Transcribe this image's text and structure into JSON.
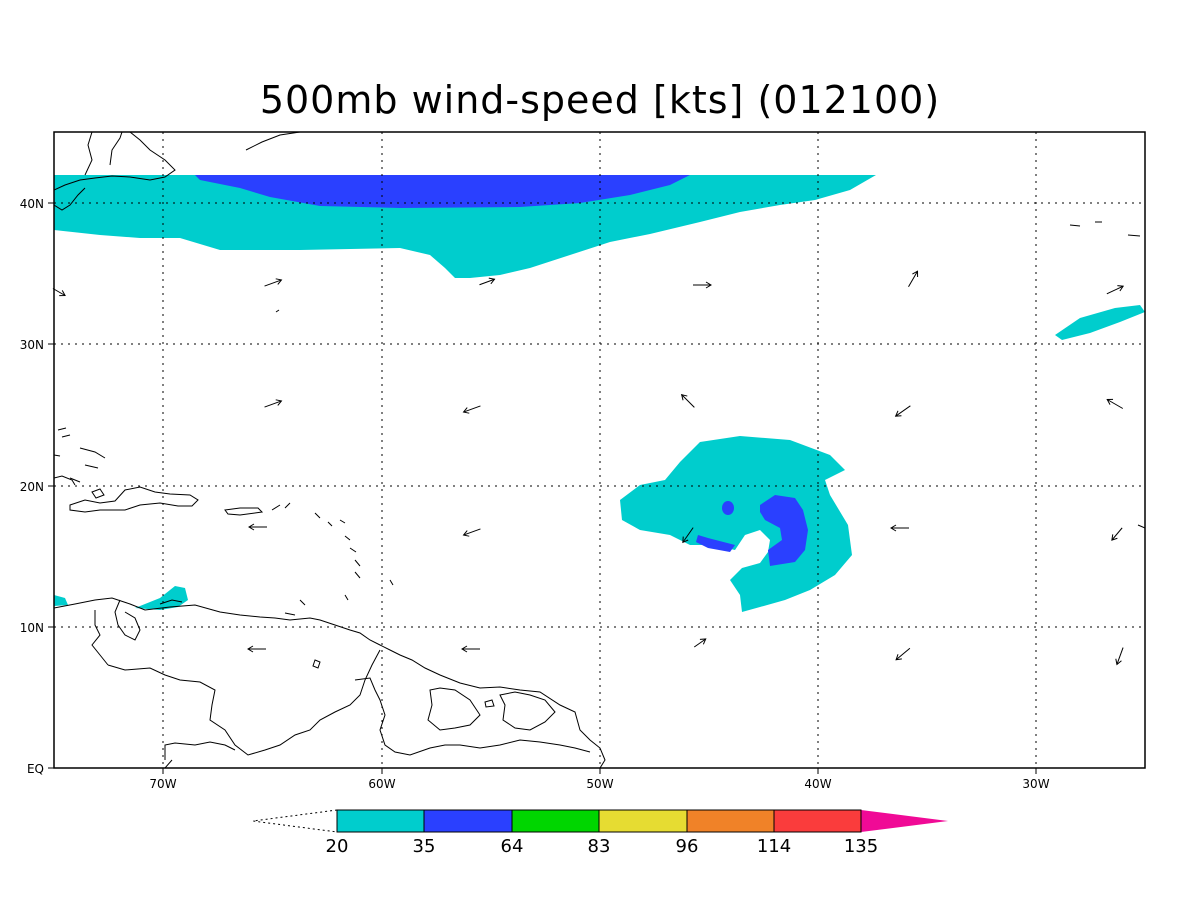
{
  "title": "500mb wind-speed [kts] (012100)",
  "map": {
    "lon_range": [
      -75,
      -25
    ],
    "lat_range": [
      0,
      45
    ],
    "lon_ticks": [
      "70W",
      "60W",
      "50W",
      "40W",
      "30W"
    ],
    "lat_ticks": [
      "EQ",
      "10N",
      "20N",
      "30N",
      "40N"
    ],
    "grid": "dotted"
  },
  "colorbar": {
    "levels": [
      "20",
      "35",
      "64",
      "83",
      "96",
      "114",
      "135"
    ],
    "colors": [
      "#00cdcd",
      "#2a40ff",
      "#00d600",
      "#e6dc32",
      "#f08228",
      "#fa3c3c",
      "#f00a96"
    ]
  }
}
